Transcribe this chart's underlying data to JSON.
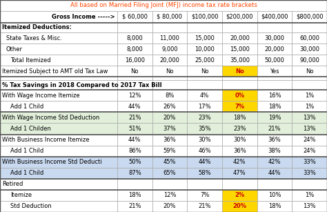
{
  "title": "All based on Married Filing Joint (MFJ) income tax rate brackets",
  "col_headers": [
    "$ 60,000",
    "$ 80,000",
    "$100,000",
    "$200,000",
    "$400,000",
    "$800,000"
  ],
  "rows": [
    {
      "label": "Gross Income ----->",
      "values": [
        "$ 60,000",
        "$ 80,000",
        "$100,000",
        "$200,000",
        "$400,000",
        "$800,000"
      ],
      "style": "gross_header"
    },
    {
      "label": "Itemized Deductions:",
      "values": [
        "",
        "",
        "",
        "",
        "",
        ""
      ],
      "style": "section_bold"
    },
    {
      "label": "State Taxes & Misc.",
      "values": [
        "8,000",
        "11,000",
        "15,000",
        "20,000",
        "30,000",
        "60,000"
      ],
      "style": "normal",
      "indent": 1
    },
    {
      "label": "Other",
      "values": [
        "8,000",
        "9,000",
        "10,000",
        "15,000",
        "20,000",
        "30,000"
      ],
      "style": "normal",
      "indent": 1
    },
    {
      "label": "Total Itemized",
      "values": [
        "16,000",
        "20,000",
        "25,000",
        "35,000",
        "50,000",
        "90,000"
      ],
      "style": "normal",
      "indent": 2
    },
    {
      "label": "Itemized Subject to AMT old Tax Law",
      "values": [
        "No",
        "No",
        "No",
        "No",
        "Yes",
        "No"
      ],
      "style": "normal",
      "highlight_col": 4
    },
    {
      "label": "",
      "values": [
        "",
        "",
        "",
        "",
        "",
        ""
      ],
      "style": "spacer"
    },
    {
      "label": "% Tax Savings in 2018 Compared to 2017 Tax Bill",
      "values": [
        "",
        "",
        "",
        "",
        "",
        ""
      ],
      "style": "section_bold"
    },
    {
      "label": "With Wage Income Itemize",
      "values": [
        "12%",
        "8%",
        "4%",
        "0%",
        "16%",
        "1%"
      ],
      "style": "normal_white",
      "highlight_col": 4
    },
    {
      "label": "Add 1 Child",
      "values": [
        "44%",
        "26%",
        "17%",
        "7%",
        "18%",
        "1%"
      ],
      "style": "normal_white",
      "highlight_col": 4,
      "indent": 2
    },
    {
      "label": "With Wage Income Std Deduction",
      "values": [
        "21%",
        "20%",
        "23%",
        "18%",
        "19%",
        "13%"
      ],
      "style": "normal_green"
    },
    {
      "label": "Add 1 Childen",
      "values": [
        "51%",
        "37%",
        "35%",
        "23%",
        "21%",
        "13%"
      ],
      "style": "normal_green",
      "indent": 2
    },
    {
      "label": "With Business Income Itemize",
      "values": [
        "44%",
        "36%",
        "30%",
        "30%",
        "36%",
        "24%"
      ],
      "style": "normal_white"
    },
    {
      "label": "Add 1 Child",
      "values": [
        "86%",
        "59%",
        "46%",
        "36%",
        "38%",
        "24%"
      ],
      "style": "normal_white",
      "indent": 2
    },
    {
      "label": "With Business Income Std Deducti",
      "values": [
        "50%",
        "45%",
        "44%",
        "42%",
        "42%",
        "33%"
      ],
      "style": "normal_blue"
    },
    {
      "label": "Add 1 Child",
      "values": [
        "87%",
        "65%",
        "58%",
        "47%",
        "44%",
        "33%"
      ],
      "style": "normal_blue",
      "indent": 2
    },
    {
      "label": "Retired",
      "values": [
        "",
        "",
        "",
        "",
        "",
        ""
      ],
      "style": "normal_white"
    },
    {
      "label": "Itemize",
      "values": [
        "18%",
        "12%",
        "7%",
        "2%",
        "10%",
        "1%"
      ],
      "style": "normal_white",
      "highlight_col": 4,
      "indent": 2
    },
    {
      "label": "Std Deduction",
      "values": [
        "21%",
        "20%",
        "21%",
        "20%",
        "18%",
        "13%"
      ],
      "style": "normal_white",
      "highlight_col": 4,
      "indent": 2
    }
  ],
  "white": "#FFFFFF",
  "green_bg": "#E2EFDA",
  "blue_bg": "#C9D9F0",
  "highlight_bg": "#FFD700",
  "highlight_text_color": "#CC0000",
  "title_color": "#FF4500",
  "border_thin": "#AAAAAA",
  "border_thick": "#555555"
}
